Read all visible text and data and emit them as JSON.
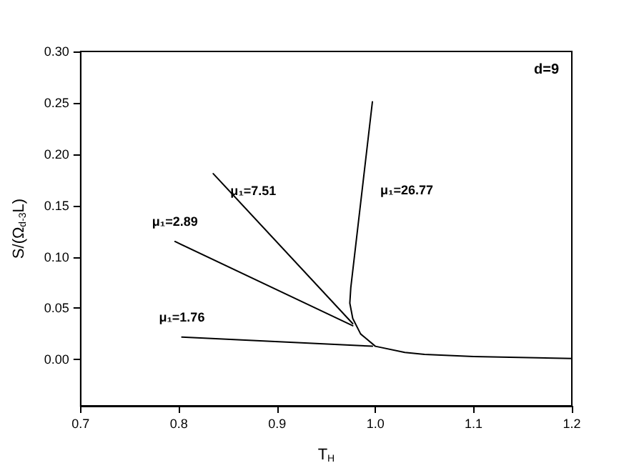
{
  "chart_data": {
    "type": "line",
    "xlabel": "T$_{H}$",
    "ylabel": "S/(Ω$_{d-3}$L)",
    "xlim": [
      0.7,
      1.2
    ],
    "xticks": [
      0.7,
      0.8,
      0.9,
      {
        "value": 1.0,
        "label": "1.0"
      },
      1.1,
      1.2
    ],
    "ylim": [
      -0.045,
      0.3
    ],
    "yticks": [
      {
        "value": 0,
        "label": "0.00"
      },
      {
        "value": 0.05,
        "label": "0.05"
      },
      {
        "value": 0.1,
        "label": "0.10"
      },
      {
        "value": 0.15,
        "label": "0.15"
      },
      {
        "value": 0.2,
        "label": "0.20"
      },
      {
        "value": 0.25,
        "label": "0.25"
      },
      {
        "value": 0.3,
        "label": "0.30"
      }
    ],
    "marker": "none",
    "line_style": "solid",
    "series": [
      {
        "name": "μ₁=1.76",
        "color": "#000000",
        "x": [
          0.803,
          0.997
        ],
        "values": [
          0.022,
          0.013
        ]
      },
      {
        "name": "μ₁=2.89",
        "color": "#000000",
        "x": [
          0.796,
          0.977
        ],
        "values": [
          0.115,
          0.033
        ]
      },
      {
        "name": "μ₁=7.51",
        "color": "#000000",
        "x": [
          0.835,
          0.977
        ],
        "values": [
          0.181,
          0.035
        ]
      },
      {
        "name": "μ₁=26.77",
        "color": "#000000",
        "x": [
          0.997,
          0.975,
          0.974,
          0.977,
          0.985,
          1.0,
          1.03,
          1.05,
          1.1,
          1.2
        ],
        "values": [
          0.251,
          0.07,
          0.055,
          0.04,
          0.025,
          0.013,
          0.007,
          0.005,
          0.003,
          0.001
        ]
      }
    ],
    "annotations": [
      "d=9"
    ]
  }
}
